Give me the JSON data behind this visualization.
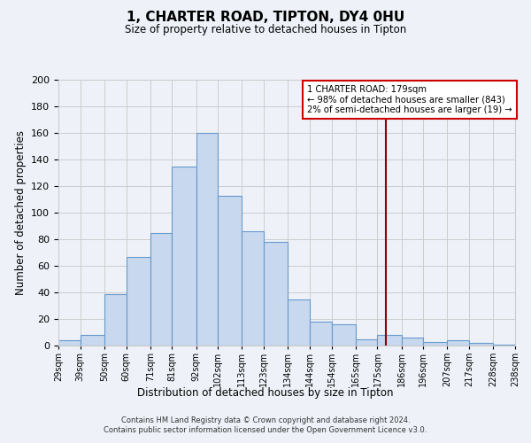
{
  "title": "1, CHARTER ROAD, TIPTON, DY4 0HU",
  "subtitle": "Size of property relative to detached houses in Tipton",
  "xlabel": "Distribution of detached houses by size in Tipton",
  "ylabel": "Number of detached properties",
  "bins": [
    29,
    39,
    50,
    60,
    71,
    81,
    92,
    102,
    113,
    123,
    134,
    144,
    154,
    165,
    175,
    186,
    196,
    207,
    217,
    228,
    238
  ],
  "counts": [
    4,
    8,
    39,
    67,
    85,
    135,
    160,
    113,
    86,
    78,
    35,
    18,
    16,
    5,
    8,
    6,
    3,
    4,
    2,
    1
  ],
  "bar_facecolor": "#c8d8ee",
  "bar_edgecolor": "#6699cc",
  "grid_color": "#cccccc",
  "background_color": "#eef2f8",
  "vline_x": 179,
  "vline_color": "#8b0000",
  "annotation_title": "1 CHARTER ROAD: 179sqm",
  "annotation_line1": "← 98% of detached houses are smaller (843)",
  "annotation_line2": "2% of semi-detached houses are larger (19) →",
  "annotation_box_color": "#ffffff",
  "annotation_border_color": "#cc0000",
  "footer1": "Contains HM Land Registry data © Crown copyright and database right 2024.",
  "footer2": "Contains public sector information licensed under the Open Government Licence v3.0.",
  "ylim": [
    0,
    200
  ],
  "yticks": [
    0,
    20,
    40,
    60,
    80,
    100,
    120,
    140,
    160,
    180,
    200
  ],
  "tick_labels": [
    "29sqm",
    "39sqm",
    "50sqm",
    "60sqm",
    "71sqm",
    "81sqm",
    "92sqm",
    "102sqm",
    "113sqm",
    "123sqm",
    "134sqm",
    "144sqm",
    "154sqm",
    "165sqm",
    "175sqm",
    "186sqm",
    "196sqm",
    "207sqm",
    "217sqm",
    "228sqm",
    "238sqm"
  ]
}
